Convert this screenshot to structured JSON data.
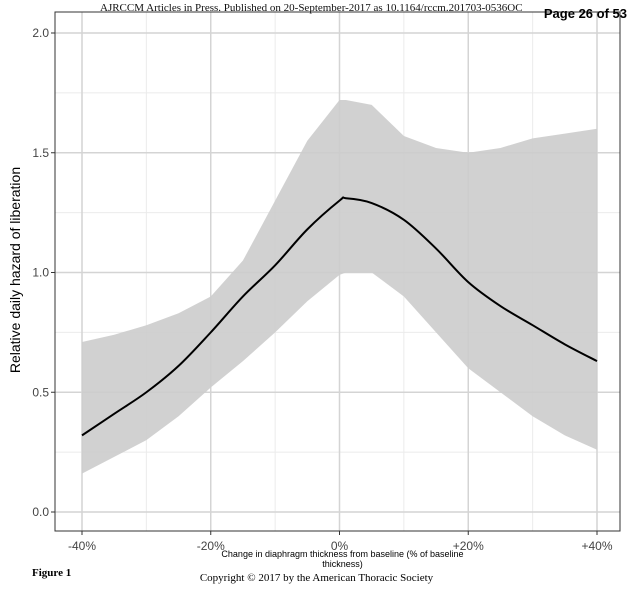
{
  "header": {
    "journal_line": "AJRCCM Articles in Press. Published on 20-September-2017 as 10.1164/rccm.201703-0536OC",
    "page": "Page 26 of 53"
  },
  "footer": {
    "figure_label": "Figure 1",
    "copyright": "Copyright © 2017 by the American Thoracic Society"
  },
  "chart_data": {
    "type": "line",
    "xlabel": "Change in diaphragm thickness from baseline (% of baseline thickness)",
    "ylabel": "Relative daily hazard of liberation",
    "xlim": [
      -40,
      40
    ],
    "ylim": [
      0,
      2
    ],
    "x_ticks": [
      -40,
      -20,
      0,
      20,
      40
    ],
    "x_tick_labels": [
      "-40%",
      "-20%",
      "0%",
      "+20%",
      "+40%"
    ],
    "y_ticks": [
      0,
      0.5,
      1,
      1.5,
      2
    ],
    "y_tick_labels": [
      "0.0",
      "0.5",
      "1.0",
      "1.5",
      "2.0"
    ],
    "grid": true,
    "line_color": "#000000",
    "band_color": "#cccccc",
    "x": [
      -40,
      -35,
      -30,
      -25,
      -20,
      -15,
      -10,
      -5,
      0,
      1,
      5,
      10,
      15,
      20,
      25,
      30,
      35,
      40
    ],
    "series": [
      {
        "values": [
          0.32,
          0.41,
          0.5,
          0.61,
          0.75,
          0.9,
          1.03,
          1.18,
          1.3,
          1.31,
          1.29,
          1.22,
          1.1,
          0.96,
          0.86,
          0.78,
          0.7,
          0.63
        ],
        "lower": [
          0.16,
          0.23,
          0.3,
          0.4,
          0.52,
          0.63,
          0.75,
          0.88,
          0.99,
          1.0,
          1.0,
          0.9,
          0.75,
          0.6,
          0.5,
          0.4,
          0.32,
          0.26
        ],
        "upper": [
          0.71,
          0.74,
          0.78,
          0.83,
          0.9,
          1.05,
          1.3,
          1.55,
          1.72,
          1.72,
          1.7,
          1.57,
          1.52,
          1.5,
          1.52,
          1.56,
          1.58,
          1.6
        ]
      }
    ]
  }
}
